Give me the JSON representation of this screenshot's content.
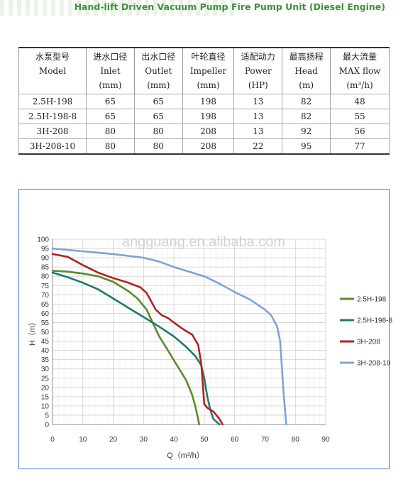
{
  "banner": {
    "title": "Hand-lift Driven Vacuum Pump Fire Pump Unit (Diesel Engine)"
  },
  "table": {
    "headers": [
      {
        "cn": "水泵型号",
        "en": "Model",
        "unit": ""
      },
      {
        "cn": "进水口径",
        "en": "Inlet",
        "unit": "(mm)"
      },
      {
        "cn": "出水口径",
        "en": "Outlet",
        "unit": "(mm)"
      },
      {
        "cn": "叶轮直径",
        "en": "Impeller",
        "unit": "(mm)"
      },
      {
        "cn": "适配动力",
        "en": "Power",
        "unit": "(HP)"
      },
      {
        "cn": "最高扬程",
        "en": "Head",
        "unit": "(m)"
      },
      {
        "cn": "最大流量",
        "en": "MAX flow",
        "unit": "(m³/h)"
      }
    ],
    "rows": [
      [
        "2.5H-198",
        "65",
        "65",
        "198",
        "13",
        "82",
        "48"
      ],
      [
        "2.5H-198-8",
        "65",
        "65",
        "198",
        "13",
        "82",
        "55"
      ],
      [
        "3H-208",
        "80",
        "80",
        "208",
        "13",
        "92",
        "56"
      ],
      [
        "3H-208-10",
        "80",
        "80",
        "208",
        "22",
        "95",
        "77"
      ]
    ]
  },
  "watermark": "angguang.en.alibaba.com",
  "chart_data": {
    "type": "line",
    "xlabel": "Q（m³/h）",
    "ylabel": "H（m）",
    "xlim": [
      0,
      90
    ],
    "ylim": [
      0,
      100
    ],
    "xticks": [
      0,
      10,
      20,
      30,
      40,
      50,
      60,
      70,
      80,
      90
    ],
    "yticks": [
      0,
      5,
      10,
      15,
      20,
      25,
      30,
      35,
      40,
      45,
      50,
      55,
      60,
      65,
      70,
      75,
      80,
      85,
      90,
      95,
      100
    ],
    "grid": true,
    "legend_position": "right",
    "series": [
      {
        "name": "2.5H-198",
        "color": "#5a8a2c",
        "x": [
          0,
          5,
          10,
          15,
          20,
          25,
          28,
          31,
          33,
          35,
          38,
          41,
          44,
          46,
          47,
          48,
          48.3
        ],
        "y": [
          83,
          82.5,
          81.5,
          80,
          77,
          72,
          68,
          62,
          55,
          48,
          40,
          32,
          24,
          16,
          10,
          3,
          0
        ]
      },
      {
        "name": "2.5H-198-8",
        "color": "#1f7a6a",
        "x": [
          0,
          5,
          10,
          15,
          20,
          25,
          30,
          35,
          40,
          44,
          47,
          49,
          50,
          51,
          52,
          53,
          55
        ],
        "y": [
          82,
          79.5,
          76.5,
          73,
          68,
          63,
          58,
          53,
          47.5,
          42,
          37,
          32,
          25,
          15,
          8,
          3,
          0
        ]
      },
      {
        "name": "3H-208",
        "color": "#b22222",
        "x": [
          0,
          5,
          10,
          15,
          20,
          25,
          29,
          31,
          33,
          34,
          36,
          38,
          40,
          43,
          46,
          48,
          49,
          49.5,
          50,
          51,
          53,
          55,
          56
        ],
        "y": [
          92,
          90.5,
          86,
          82,
          79,
          76.5,
          74,
          71,
          65,
          62,
          59,
          57.5,
          55,
          51.5,
          48.5,
          43,
          33,
          22,
          11,
          9,
          7,
          3,
          0
        ]
      },
      {
        "name": "3H-208-10",
        "color": "#7ea3d8",
        "x": [
          0,
          10,
          20,
          30,
          35,
          40,
          50,
          55,
          60,
          65,
          70,
          72,
          74,
          75,
          76,
          77
        ],
        "y": [
          95,
          93.5,
          92,
          90,
          88,
          85,
          80,
          76,
          71.5,
          67.5,
          62,
          59,
          53,
          45,
          20,
          0
        ]
      }
    ]
  }
}
